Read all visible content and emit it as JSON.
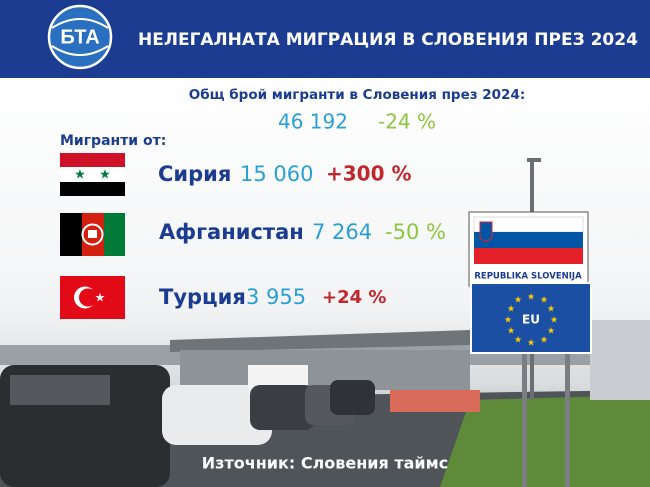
{
  "header": {
    "logo": "БТА",
    "title": "НЕЛЕГАЛНАТА МИГРАЦИЯ В СЛОВЕНИЯ ПРЕЗ 2024"
  },
  "total": {
    "label": "Общ брой мигранти в Словения през 2024:",
    "value": "46 192",
    "change": "-24 %"
  },
  "origin_label": "Мигранти от:",
  "countries": [
    {
      "name": "Сирия",
      "value": "15 060",
      "change": "+300 %"
    },
    {
      "name": "Афганистан",
      "value": "7 264",
      "change": "-50 %"
    },
    {
      "name": "Турция",
      "value": "3 955",
      "change": "+24 %"
    }
  ],
  "signs": {
    "country": "REPUBLIKA SLOVENIJA",
    "eu": "EU"
  },
  "source": "Източник: Словения таймс"
}
